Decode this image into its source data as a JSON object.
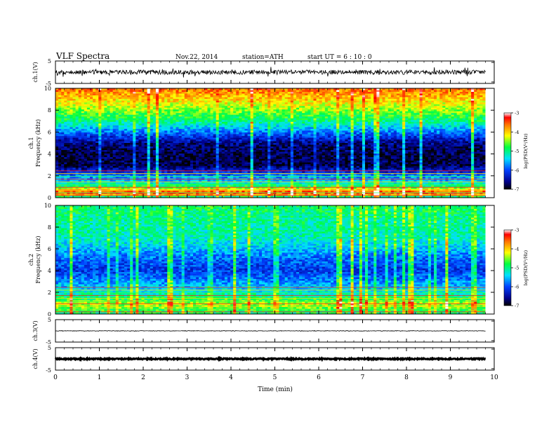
{
  "header": {
    "title": "VLF  Spectra",
    "date": "Nov.22, 2014",
    "station": "station=ATH",
    "start": "start  UT  =   6  : 10 : 0"
  },
  "chart_data": [
    {
      "type": "line",
      "name": "ch1-waveform",
      "ylabel": "ch.1(V)",
      "ylim": [
        -5,
        5
      ],
      "yticks": [
        "5",
        "-5"
      ],
      "xlim": [
        0,
        10
      ],
      "trace_level": 0.0,
      "trace_amplitude": 1.0,
      "x_end": 9.8
    },
    {
      "type": "heatmap",
      "name": "ch1-spectrogram",
      "ylabel": "ch.1",
      "ylabel2": "Frequency  (kHz)",
      "ylim": [
        0,
        10
      ],
      "yticks": [
        "0",
        "2",
        "4",
        "6",
        "8",
        "10"
      ],
      "xlim": [
        0,
        10
      ],
      "x_end": 9.8,
      "colorbar": {
        "label": "log(PSD(V²/Hz)",
        "range": [
          -7,
          -3
        ],
        "ticks": [
          "-3",
          "-4",
          "-5",
          "-6",
          "-7"
        ]
      },
      "profile": [
        {
          "f": 0.0,
          "v": -5.5
        },
        {
          "f": 0.3,
          "v": -3.5
        },
        {
          "f": 0.6,
          "v": -3.6
        },
        {
          "f": 1.0,
          "v": -4.8
        },
        {
          "f": 1.5,
          "v": -5.5
        },
        {
          "f": 2.0,
          "v": -5.8
        },
        {
          "f": 2.5,
          "v": -6.4
        },
        {
          "f": 3.0,
          "v": -6.8
        },
        {
          "f": 4.0,
          "v": -6.8
        },
        {
          "f": 5.0,
          "v": -6.6
        },
        {
          "f": 6.0,
          "v": -5.8
        },
        {
          "f": 7.0,
          "v": -5.0
        },
        {
          "f": 8.0,
          "v": -4.5
        },
        {
          "f": 9.0,
          "v": -4.0
        },
        {
          "f": 10.0,
          "v": -3.6
        }
      ]
    },
    {
      "type": "heatmap",
      "name": "ch2-spectrogram",
      "ylabel": "ch.2",
      "ylabel2": "Frequency  (kHz)",
      "ylim": [
        0,
        10
      ],
      "yticks": [
        "0",
        "2",
        "4",
        "6",
        "8",
        "10"
      ],
      "xlim": [
        0,
        10
      ],
      "x_end": 9.8,
      "colorbar": {
        "label": "log(PSD(V²/Hz)",
        "range": [
          -7,
          -3
        ],
        "ticks": [
          "-3",
          "-4",
          "-5",
          "-6",
          "-7"
        ]
      },
      "profile": [
        {
          "f": 0.0,
          "v": -5.0
        },
        {
          "f": 0.5,
          "v": -4.6
        },
        {
          "f": 1.0,
          "v": -4.4
        },
        {
          "f": 1.5,
          "v": -4.9
        },
        {
          "f": 2.0,
          "v": -5.3
        },
        {
          "f": 3.0,
          "v": -5.7
        },
        {
          "f": 4.0,
          "v": -6.1
        },
        {
          "f": 5.0,
          "v": -5.9
        },
        {
          "f": 6.0,
          "v": -5.5
        },
        {
          "f": 7.0,
          "v": -5.2
        },
        {
          "f": 8.0,
          "v": -5.1
        },
        {
          "f": 9.0,
          "v": -5.0
        },
        {
          "f": 10.0,
          "v": -4.9
        }
      ]
    },
    {
      "type": "line",
      "name": "ch3-waveform",
      "ylabel": "ch.3(V)",
      "ylim": [
        -5,
        5
      ],
      "yticks": [
        "5",
        "-5"
      ],
      "xlim": [
        0,
        10
      ],
      "trace_level": 0.0,
      "trace_amplitude": 0.12,
      "x_end": 9.8
    },
    {
      "type": "line",
      "name": "ch4-waveform",
      "ylabel": "ch.4(V)",
      "ylim": [
        -5,
        5
      ],
      "yticks": [
        "5",
        "-5"
      ],
      "xlim": [
        0,
        10
      ],
      "trace_level": 0.0,
      "trace_amplitude": 0.25,
      "x_end": 9.8
    }
  ],
  "xaxis": {
    "label": "Time  (min)",
    "ticks": [
      "0",
      "1",
      "2",
      "3",
      "4",
      "5",
      "6",
      "7",
      "8",
      "9",
      "10"
    ]
  }
}
